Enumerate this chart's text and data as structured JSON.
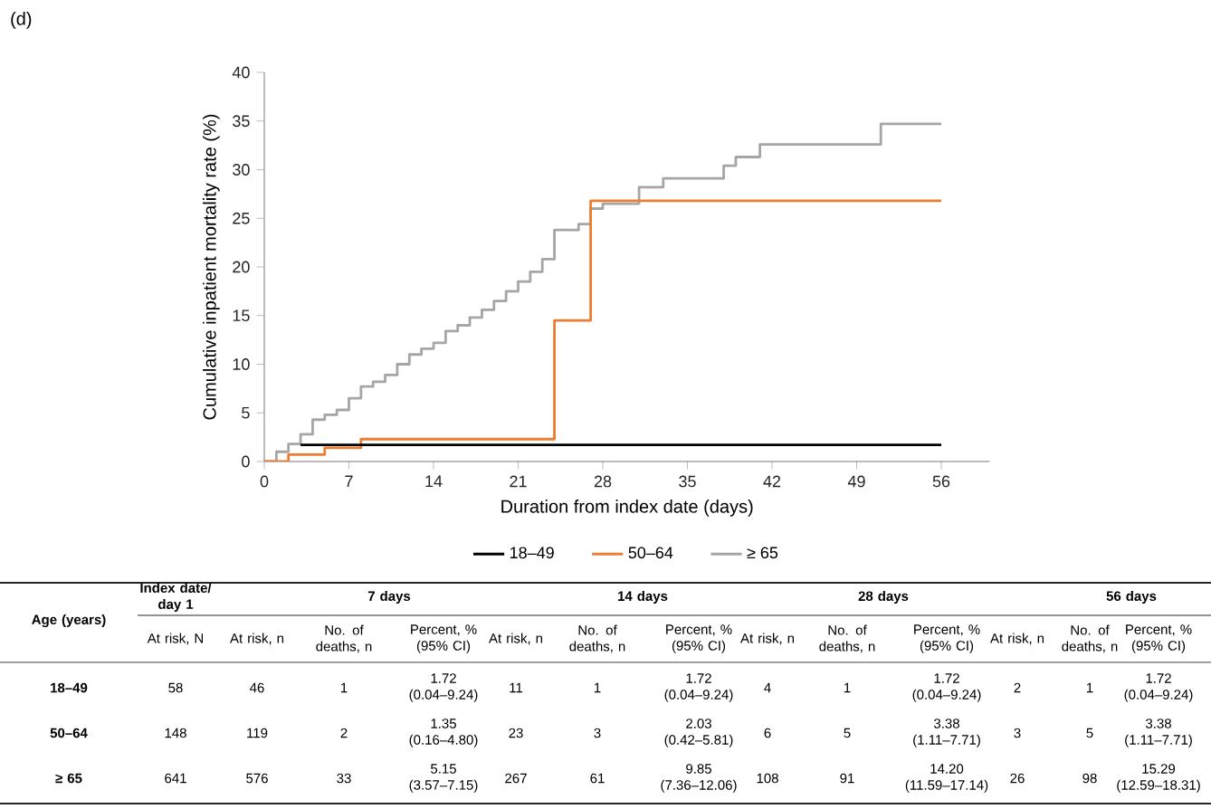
{
  "chart_data": {
    "type": "step",
    "title": "(d)",
    "xlabel": "Duration from index date (days)",
    "ylabel": "Cumulative inpatient mortality rate (%)",
    "xlim": [
      0,
      60
    ],
    "xticks": [
      0,
      7,
      14,
      21,
      28,
      35,
      42,
      49,
      56
    ],
    "ylim": [
      0,
      40
    ],
    "yticks": [
      0,
      5,
      10,
      15,
      20,
      25,
      30,
      35,
      40
    ],
    "legend": "bottom",
    "grid": false,
    "series": [
      {
        "name": "18–49",
        "color": "#000000",
        "x": [
          3,
          56
        ],
        "values": [
          1.7,
          1.7
        ]
      },
      {
        "name": "50–64",
        "color": "#ed7d31",
        "x": [
          0,
          2,
          5,
          8,
          24,
          27,
          56
        ],
        "values": [
          0,
          0.7,
          1.4,
          2.3,
          14.5,
          26.8,
          26.8
        ]
      },
      {
        "name": "≥ 65",
        "color": "#a5a5a5",
        "x": [
          0,
          1,
          2,
          3,
          4,
          5,
          6,
          7,
          8,
          9,
          10,
          11,
          12,
          13,
          14,
          15,
          16,
          17,
          18,
          19,
          20,
          21,
          22,
          23,
          24,
          26,
          27,
          28,
          31,
          33,
          38,
          39,
          41,
          51,
          56
        ],
        "values": [
          0,
          1.0,
          1.8,
          2.8,
          4.3,
          4.8,
          5.3,
          6.5,
          7.7,
          8.2,
          8.9,
          10.0,
          11.0,
          11.6,
          12.2,
          13.4,
          14.0,
          14.8,
          15.6,
          16.5,
          17.5,
          18.5,
          19.5,
          20.8,
          23.8,
          24.4,
          26.0,
          26.5,
          28.2,
          29.1,
          30.4,
          31.3,
          32.6,
          34.7,
          34.7
        ]
      }
    ],
    "annotations": [
      "Age (years)",
      "Index date/ day 1",
      "7 days",
      "14 days",
      "28 days",
      "56 days",
      "At risk, N",
      "At risk, n",
      "No. of deaths, n",
      "Percent, % (95% CI)",
      "At risk, n",
      "No. of deaths, n",
      "Percent, % (95% CI)",
      "At risk, n",
      "No. of deaths, n",
      "Percent, % (95% CI)",
      "At risk, n",
      "No. of deaths, n",
      "Percent, % (95% CI)",
      "18–49",
      "58",
      "46",
      "1",
      "1.72 (0.04–9.24)",
      "11",
      "1",
      "1.72 (0.04–9.24)",
      "4",
      "1",
      "1.72 (0.04–9.24)",
      "2",
      "1",
      "1.72 (0.04–9.24)",
      "50–64",
      "148",
      "119",
      "2",
      "1.35 (0.16–4.80)",
      "23",
      "3",
      "2.03 (0.42–5.81)",
      "6",
      "5",
      "3.38 (1.11–7.71)",
      "3",
      "5",
      "3.38 (1.11–7.71)",
      "≥ 65",
      "641",
      "576",
      "33",
      "5.15 (3.57–7.15)",
      "267",
      "61",
      "9.85 (7.36–12.06)",
      "108",
      "91",
      "14.20 (11.59–17.14)",
      "26",
      "98",
      "15.29 (12.59–18.31)"
    ]
  }
}
